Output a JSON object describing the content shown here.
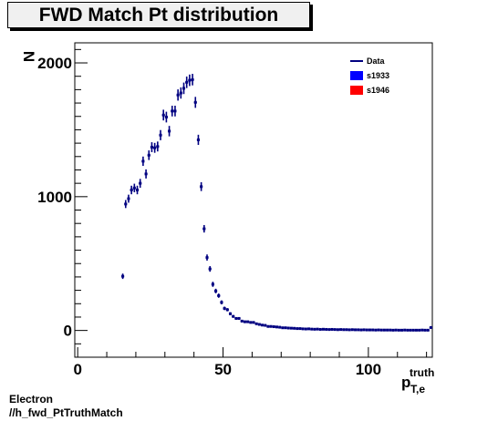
{
  "page": {
    "title": "FWD Match Pt distribution",
    "caption_line1": "Electron",
    "caption_line2": "//h_fwd_PtTruthMatch"
  },
  "chart_data": {
    "type": "scatter",
    "title": "FWD Match Pt distribution",
    "ylabel": "N",
    "xlabel_main": "p",
    "xlabel_sup": "truth",
    "xlabel_sub": "T,e",
    "xlim": [
      -1,
      122
    ],
    "ylim": [
      -200,
      2150
    ],
    "x_ticks": [
      0,
      50,
      100
    ],
    "y_ticks": [
      0,
      1000,
      2000
    ],
    "grid": false,
    "legend_position": "top-right",
    "legend": [
      {
        "label": "Data",
        "marker": "line",
        "color": "#000080"
      },
      {
        "label": "s1933",
        "marker": "box",
        "color": "#0000ff"
      },
      {
        "label": "s1946",
        "marker": "box",
        "color": "#ff0000"
      }
    ],
    "series": [
      {
        "name": "Data",
        "color": "#000080",
        "x_half_width": 0.5,
        "points": [
          [
            15.5,
            405,
            20
          ],
          [
            16.5,
            945,
            30
          ],
          [
            17.5,
            985,
            30
          ],
          [
            18.5,
            1050,
            32
          ],
          [
            19.5,
            1065,
            32
          ],
          [
            20.5,
            1050,
            32
          ],
          [
            21.5,
            1100,
            33
          ],
          [
            22.5,
            1265,
            35
          ],
          [
            23.5,
            1170,
            34
          ],
          [
            24.5,
            1310,
            36
          ],
          [
            25.5,
            1370,
            37
          ],
          [
            26.5,
            1365,
            37
          ],
          [
            27.5,
            1375,
            37
          ],
          [
            28.5,
            1460,
            38
          ],
          [
            29.5,
            1610,
            40
          ],
          [
            30.5,
            1595,
            40
          ],
          [
            31.5,
            1490,
            39
          ],
          [
            32.5,
            1640,
            40
          ],
          [
            33.5,
            1640,
            40
          ],
          [
            34.5,
            1760,
            42
          ],
          [
            35.5,
            1775,
            42
          ],
          [
            36.5,
            1810,
            43
          ],
          [
            37.5,
            1855,
            43
          ],
          [
            38.5,
            1870,
            43
          ],
          [
            39.5,
            1875,
            43
          ],
          [
            40.5,
            1705,
            41
          ],
          [
            41.5,
            1425,
            38
          ],
          [
            42.5,
            1075,
            33
          ],
          [
            43.5,
            760,
            28
          ],
          [
            44.5,
            545,
            23
          ],
          [
            45.5,
            460,
            21
          ],
          [
            46.5,
            345,
            19
          ],
          [
            47.5,
            295,
            17
          ],
          [
            48.5,
            260,
            16
          ],
          [
            49.5,
            210,
            15
          ],
          [
            50.5,
            165,
            13
          ],
          [
            51.5,
            155,
            12
          ],
          [
            52.5,
            125,
            11
          ],
          [
            53.5,
            105,
            10
          ],
          [
            54.5,
            90,
            9
          ],
          [
            55.5,
            90,
            9
          ],
          [
            56.5,
            70,
            8
          ],
          [
            57.5,
            65,
            8
          ],
          [
            58.5,
            65,
            8
          ],
          [
            59.5,
            60,
            8
          ],
          [
            60.5,
            60,
            8
          ],
          [
            61.5,
            50,
            7
          ],
          [
            62.5,
            45,
            7
          ],
          [
            63.5,
            40,
            6
          ],
          [
            64.5,
            38,
            6
          ],
          [
            65.5,
            30,
            6
          ],
          [
            66.5,
            30,
            6
          ],
          [
            67.5,
            28,
            5
          ],
          [
            68.5,
            26,
            5
          ],
          [
            69.5,
            24,
            5
          ],
          [
            70.5,
            20,
            5
          ],
          [
            71.5,
            20,
            5
          ],
          [
            72.5,
            18,
            4
          ],
          [
            73.5,
            17,
            4
          ],
          [
            74.5,
            16,
            4
          ],
          [
            75.5,
            14,
            4
          ],
          [
            76.5,
            14,
            4
          ],
          [
            77.5,
            12,
            4
          ],
          [
            78.5,
            11,
            3
          ],
          [
            79.5,
            12,
            3
          ],
          [
            80.5,
            10,
            3
          ],
          [
            81.5,
            9,
            3
          ],
          [
            82.5,
            10,
            3
          ],
          [
            83.5,
            8,
            3
          ],
          [
            84.5,
            9,
            3
          ],
          [
            85.5,
            8,
            3
          ],
          [
            86.5,
            7,
            3
          ],
          [
            87.5,
            8,
            3
          ],
          [
            88.5,
            7,
            3
          ],
          [
            89.5,
            6,
            3
          ],
          [
            90.5,
            7,
            3
          ],
          [
            91.5,
            6,
            2
          ],
          [
            92.5,
            6,
            2
          ],
          [
            93.5,
            5,
            2
          ],
          [
            94.5,
            6,
            2
          ],
          [
            95.5,
            5,
            2
          ],
          [
            96.5,
            5,
            2
          ],
          [
            97.5,
            4,
            2
          ],
          [
            98.5,
            5,
            2
          ],
          [
            99.5,
            4,
            2
          ],
          [
            100.5,
            4,
            2
          ],
          [
            101.5,
            4,
            2
          ],
          [
            102.5,
            3,
            2
          ],
          [
            103.5,
            4,
            2
          ],
          [
            104.5,
            3,
            2
          ],
          [
            105.5,
            3,
            2
          ],
          [
            106.5,
            3,
            2
          ],
          [
            107.5,
            3,
            2
          ],
          [
            108.5,
            2,
            2
          ],
          [
            109.5,
            3,
            2
          ],
          [
            110.5,
            2,
            2
          ],
          [
            111.5,
            2,
            2
          ],
          [
            112.5,
            3,
            2
          ],
          [
            113.5,
            2,
            2
          ],
          [
            114.5,
            2,
            2
          ],
          [
            115.5,
            2,
            2
          ],
          [
            116.5,
            2,
            2
          ],
          [
            117.5,
            2,
            2
          ],
          [
            118.5,
            3,
            2
          ],
          [
            119.5,
            2,
            2
          ],
          [
            120.5,
            2,
            2
          ],
          [
            121.5,
            22,
            6
          ]
        ]
      }
    ]
  }
}
